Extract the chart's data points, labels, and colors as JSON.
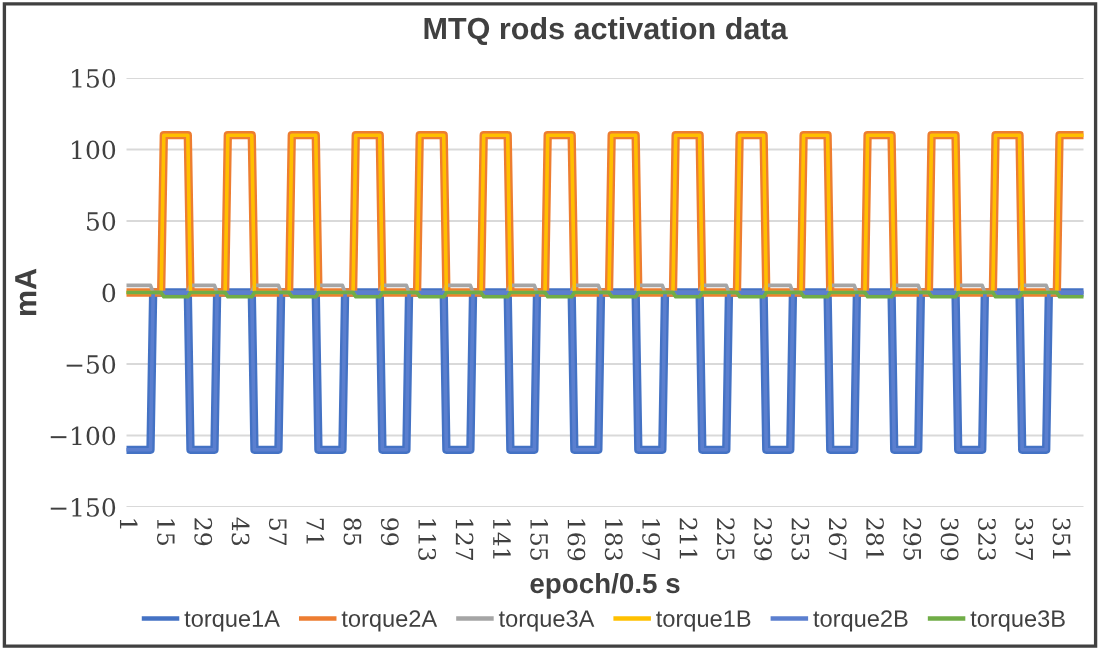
{
  "chart_data": {
    "type": "line",
    "title": "MTQ rods activation data",
    "xlabel": "epoch/0.5 s",
    "ylabel": "mA",
    "x": [
      1,
      10,
      11,
      14,
      15,
      24,
      25,
      34,
      35,
      38,
      39,
      48,
      49,
      58,
      59,
      62,
      63,
      72,
      73,
      82,
      83,
      86,
      87,
      96,
      97,
      106,
      107,
      110,
      111,
      120,
      121,
      130,
      131,
      134,
      135,
      144,
      145,
      154,
      155,
      158,
      159,
      168,
      169,
      178,
      179,
      182,
      183,
      192,
      193,
      202,
      203,
      206,
      207,
      216,
      217,
      226,
      227,
      230,
      231,
      240,
      241,
      250,
      251,
      254,
      255,
      264,
      265,
      274,
      275,
      278,
      279,
      288,
      289,
      298,
      299,
      302,
      303,
      312,
      313,
      322,
      323,
      326,
      327,
      336,
      337,
      346,
      347,
      350,
      351,
      360
    ],
    "series": [
      {
        "name": "torque1A",
        "color": "#4472c4",
        "values": [
          -110,
          -110,
          0,
          0,
          0,
          0,
          -110,
          -110,
          0,
          0,
          0,
          0,
          -110,
          -110,
          0,
          0,
          0,
          0,
          -110,
          -110,
          0,
          0,
          0,
          0,
          -110,
          -110,
          0,
          0,
          0,
          0,
          -110,
          -110,
          0,
          0,
          0,
          0,
          -110,
          -110,
          0,
          0,
          0,
          0,
          -110,
          -110,
          0,
          0,
          0,
          0,
          -110,
          -110,
          0,
          0,
          0,
          0,
          -110,
          -110,
          0,
          0,
          0,
          0,
          -110,
          -110,
          0,
          0,
          0,
          0,
          -110,
          -110,
          0,
          0,
          0,
          0,
          -110,
          -110,
          0,
          0,
          0,
          0,
          -110,
          -110,
          0,
          0,
          0,
          0,
          -110,
          -110,
          0,
          0,
          0,
          0
        ]
      },
      {
        "name": "torque2A",
        "color": "#ed7d31",
        "values": [
          0,
          0,
          0,
          0,
          110,
          110,
          0,
          0,
          0,
          0,
          110,
          110,
          0,
          0,
          0,
          0,
          110,
          110,
          0,
          0,
          0,
          0,
          110,
          110,
          0,
          0,
          0,
          0,
          110,
          110,
          0,
          0,
          0,
          0,
          110,
          110,
          0,
          0,
          0,
          0,
          110,
          110,
          0,
          0,
          0,
          0,
          110,
          110,
          0,
          0,
          0,
          0,
          110,
          110,
          0,
          0,
          0,
          0,
          110,
          110,
          0,
          0,
          0,
          0,
          110,
          110,
          0,
          0,
          0,
          0,
          110,
          110,
          0,
          0,
          0,
          0,
          110,
          110,
          0,
          0,
          0,
          0,
          110,
          110,
          0,
          0,
          0,
          0,
          110,
          110
        ]
      },
      {
        "name": "torque3A",
        "color": "#a5a5a5",
        "values": [
          5,
          5,
          0,
          0,
          0,
          0,
          5,
          5,
          0,
          0,
          0,
          0,
          5,
          5,
          0,
          0,
          0,
          0,
          5,
          5,
          0,
          0,
          0,
          0,
          5,
          5,
          0,
          0,
          0,
          0,
          5,
          5,
          0,
          0,
          0,
          0,
          5,
          5,
          0,
          0,
          0,
          0,
          5,
          5,
          0,
          0,
          0,
          0,
          5,
          5,
          0,
          0,
          0,
          0,
          5,
          5,
          0,
          0,
          0,
          0,
          5,
          5,
          0,
          0,
          0,
          0,
          5,
          5,
          0,
          0,
          0,
          0,
          5,
          5,
          0,
          0,
          0,
          0,
          5,
          5,
          0,
          0,
          0,
          0,
          5,
          5,
          0,
          0,
          0,
          0
        ]
      },
      {
        "name": "torque1B",
        "color": "#ffc000",
        "values": [
          0,
          0,
          0,
          0,
          110,
          110,
          0,
          0,
          0,
          0,
          110,
          110,
          0,
          0,
          0,
          0,
          110,
          110,
          0,
          0,
          0,
          0,
          110,
          110,
          0,
          0,
          0,
          0,
          110,
          110,
          0,
          0,
          0,
          0,
          110,
          110,
          0,
          0,
          0,
          0,
          110,
          110,
          0,
          0,
          0,
          0,
          110,
          110,
          0,
          0,
          0,
          0,
          110,
          110,
          0,
          0,
          0,
          0,
          110,
          110,
          0,
          0,
          0,
          0,
          110,
          110,
          0,
          0,
          0,
          0,
          110,
          110,
          0,
          0,
          0,
          0,
          110,
          110,
          0,
          0,
          0,
          0,
          110,
          110,
          0,
          0,
          0,
          0,
          110,
          110
        ]
      },
      {
        "name": "torque2B",
        "color": "#5b7fcf",
        "values": [
          -110,
          -110,
          0,
          0,
          0,
          0,
          -110,
          -110,
          0,
          0,
          0,
          0,
          -110,
          -110,
          0,
          0,
          0,
          0,
          -110,
          -110,
          0,
          0,
          0,
          0,
          -110,
          -110,
          0,
          0,
          0,
          0,
          -110,
          -110,
          0,
          0,
          0,
          0,
          -110,
          -110,
          0,
          0,
          0,
          0,
          -110,
          -110,
          0,
          0,
          0,
          0,
          -110,
          -110,
          0,
          0,
          0,
          0,
          -110,
          -110,
          0,
          0,
          0,
          0,
          -110,
          -110,
          0,
          0,
          0,
          0,
          -110,
          -110,
          0,
          0,
          0,
          0,
          -110,
          -110,
          0,
          0,
          0,
          0,
          -110,
          -110,
          0,
          0,
          0,
          0,
          -110,
          -110,
          0,
          0,
          0,
          0
        ]
      },
      {
        "name": "torque3B",
        "color": "#70ad47",
        "values": [
          0,
          0,
          0,
          0,
          -3,
          -3,
          0,
          0,
          0,
          0,
          -3,
          -3,
          0,
          0,
          0,
          0,
          -3,
          -3,
          0,
          0,
          0,
          0,
          -3,
          -3,
          0,
          0,
          0,
          0,
          -3,
          -3,
          0,
          0,
          0,
          0,
          -3,
          -3,
          0,
          0,
          0,
          0,
          -3,
          -3,
          0,
          0,
          0,
          0,
          -3,
          -3,
          0,
          0,
          0,
          0,
          -3,
          -3,
          0,
          0,
          0,
          0,
          -3,
          -3,
          0,
          0,
          0,
          0,
          -3,
          -3,
          0,
          0,
          0,
          0,
          -3,
          -3,
          0,
          0,
          0,
          0,
          -3,
          -3,
          0,
          0,
          0,
          0,
          -3,
          -3,
          0,
          0,
          0,
          0,
          -3,
          -3
        ]
      }
    ],
    "xlim": [
      1,
      360
    ],
    "xticks": [
      1,
      15,
      29,
      43,
      57,
      71,
      85,
      99,
      113,
      127,
      141,
      155,
      169,
      183,
      197,
      211,
      225,
      239,
      253,
      267,
      281,
      295,
      309,
      323,
      337,
      351
    ],
    "ylim": [
      -150,
      150
    ],
    "yticks": [
      -150,
      -100,
      -50,
      0,
      50,
      100,
      150
    ],
    "grid": "y",
    "legend": "bottom",
    "marker": "none",
    "line_style": "solid"
  }
}
